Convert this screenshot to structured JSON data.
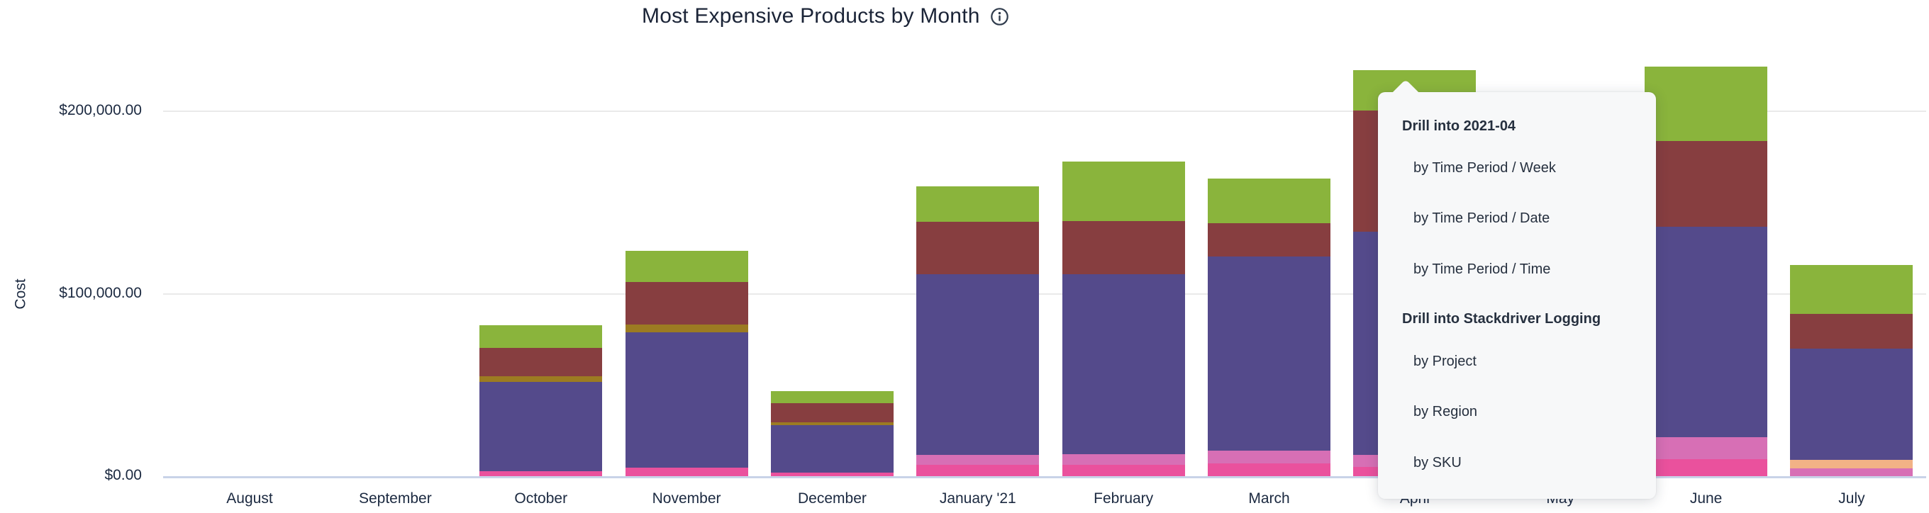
{
  "title": {
    "text": "Most Expensive Products by Month"
  },
  "y_axis": {
    "label": "Cost",
    "ticks": [
      {
        "label": "$0.00",
        "value": 0
      },
      {
        "label": "$100,000.00",
        "value": 100000
      },
      {
        "label": "$200,000.00",
        "value": 200000
      }
    ]
  },
  "drill_menu": {
    "sections": [
      {
        "header": "Drill into 2021-04",
        "items": [
          {
            "label": "by Time Period / Week"
          },
          {
            "label": "by Time Period / Date"
          },
          {
            "label": "by Time Period / Time"
          }
        ]
      },
      {
        "header": "Drill into Stackdriver Logging",
        "items": [
          {
            "label": "by Project"
          },
          {
            "label": "by Region"
          },
          {
            "label": "by SKU"
          }
        ]
      }
    ]
  },
  "chart_data": {
    "type": "bar",
    "stacked": true,
    "title": "Most Expensive Products by Month",
    "xlabel": "",
    "ylabel": "Cost",
    "ylim": [
      0,
      230000
    ],
    "y_tick_labels": [
      "$0.00",
      "$100,000.00",
      "$200,000.00"
    ],
    "grid": "horizontal",
    "legend_position": "none",
    "categories": [
      "August",
      "September",
      "October",
      "November",
      "December",
      "January '21",
      "February",
      "March",
      "April",
      "May",
      "June",
      "July"
    ],
    "stack_order_bottom_to_top": [
      "pink",
      "light_pink",
      "orange",
      "purple",
      "olive",
      "maroon",
      "green"
    ],
    "series_colors": {
      "pink": "#EA519D",
      "light_pink": "#D76FB5",
      "orange": "#F2B286",
      "purple": "#544A8B",
      "olive": "#9C7B22",
      "maroon": "#873E40",
      "green": "#8AB43C"
    },
    "bars": [
      {
        "month": "August",
        "total": 0,
        "segments": []
      },
      {
        "month": "September",
        "total": 0,
        "segments": []
      },
      {
        "month": "October",
        "total": 82600,
        "segments": [
          {
            "series": "pink",
            "value": 2700
          },
          {
            "series": "purple",
            "value": 48900
          },
          {
            "series": "olive",
            "value": 3100
          },
          {
            "series": "maroon",
            "value": 15500
          },
          {
            "series": "green",
            "value": 12400
          }
        ]
      },
      {
        "month": "November",
        "total": 123600,
        "segments": [
          {
            "series": "pink",
            "value": 4700
          },
          {
            "series": "purple",
            "value": 74200
          },
          {
            "series": "olive",
            "value": 4300
          },
          {
            "series": "maroon",
            "value": 23300
          },
          {
            "series": "green",
            "value": 17100
          }
        ]
      },
      {
        "month": "December",
        "total": 46600,
        "segments": [
          {
            "series": "pink",
            "value": 1900
          },
          {
            "series": "purple",
            "value": 26000
          },
          {
            "series": "olive",
            "value": 1600
          },
          {
            "series": "maroon",
            "value": 10500
          },
          {
            "series": "green",
            "value": 6600
          }
        ]
      },
      {
        "month": "January '21",
        "total": 158700,
        "segments": [
          {
            "series": "pink",
            "value": 6200
          },
          {
            "series": "light_pink",
            "value": 5400
          },
          {
            "series": "purple",
            "value": 99000
          },
          {
            "series": "maroon",
            "value": 28700
          },
          {
            "series": "green",
            "value": 19400
          }
        ]
      },
      {
        "month": "February",
        "total": 172300,
        "segments": [
          {
            "series": "pink",
            "value": 6200
          },
          {
            "series": "light_pink",
            "value": 5800
          },
          {
            "series": "purple",
            "value": 98600
          },
          {
            "series": "maroon",
            "value": 29100
          },
          {
            "series": "green",
            "value": 32600
          }
        ]
      },
      {
        "month": "March",
        "total": 163200,
        "segments": [
          {
            "series": "pink",
            "value": 7000
          },
          {
            "series": "light_pink",
            "value": 7000
          },
          {
            "series": "purple",
            "value": 106400
          },
          {
            "series": "maroon",
            "value": 18300
          },
          {
            "series": "green",
            "value": 24500
          }
        ]
      },
      {
        "month": "April",
        "total": 222400,
        "segments": [
          {
            "series": "pink",
            "value": 5000
          },
          {
            "series": "light_pink",
            "value": 6600
          },
          {
            "series": "purple",
            "value": 122300
          },
          {
            "series": "maroon",
            "value": 66400
          },
          {
            "series": "green",
            "value": 22100
          }
        ]
      },
      {
        "month": "May",
        "hidden_by_menu": true,
        "segments": []
      },
      {
        "month": "June",
        "total": 224400,
        "segments": [
          {
            "series": "pink",
            "value": 9300
          },
          {
            "series": "light_pink",
            "value": 12000
          },
          {
            "series": "purple",
            "value": 115300
          },
          {
            "series": "maroon",
            "value": 47000
          },
          {
            "series": "green",
            "value": 40800
          }
        ]
      },
      {
        "month": "July",
        "total": 115800,
        "segments": [
          {
            "series": "light_pink",
            "value": 4300
          },
          {
            "series": "orange",
            "value": 4700
          },
          {
            "series": "purple",
            "value": 61000
          },
          {
            "series": "maroon",
            "value": 19000
          },
          {
            "series": "green",
            "value": 26800
          }
        ]
      }
    ],
    "annotation": "Drill-down menu open on the April (2021-04) bar; the May column is obscured by the menu"
  },
  "colors": {
    "background": "#ffffff",
    "title_text": "#1B2437",
    "axis_text": "#1B2940",
    "gridline": "#EAEAEA",
    "axis_line": "#C9D3E8",
    "menu_bg": "#F7F8F9",
    "menu_text": "#26303F"
  }
}
